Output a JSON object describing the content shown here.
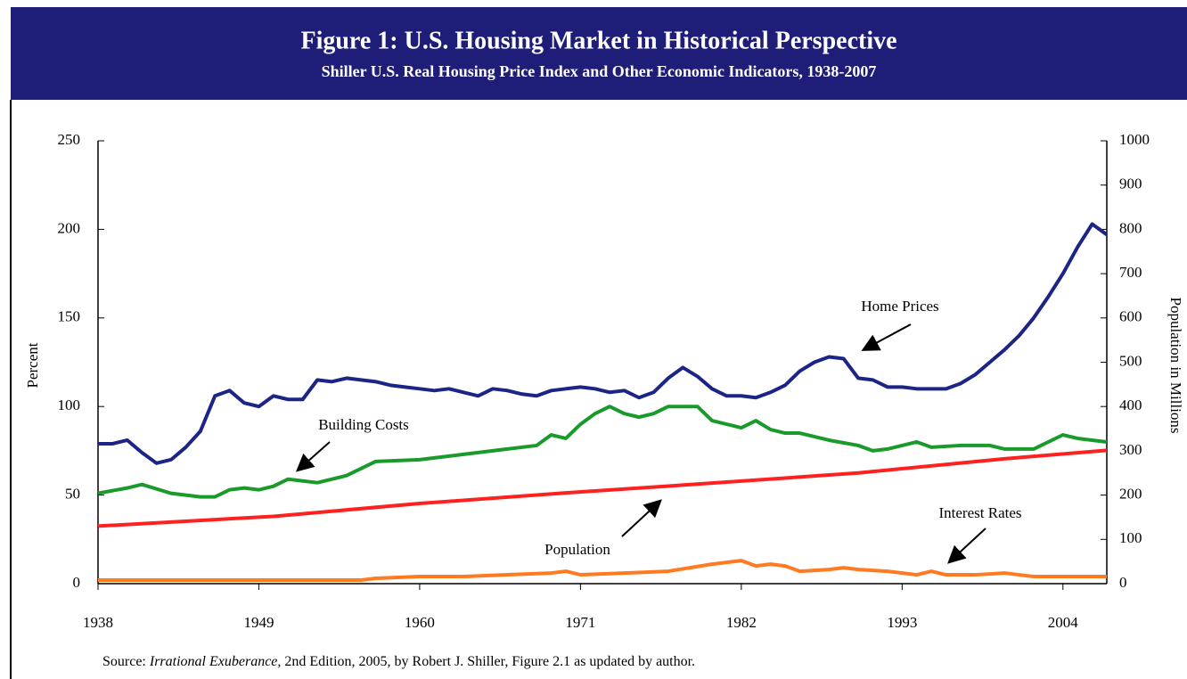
{
  "chart_data": {
    "type": "line",
    "title": "Figure 1: U.S. Housing Market in Historical Perspective",
    "subtitle": "Shiller U.S. Real Housing Price Index and Other Economic Indicators, 1938-2007",
    "y_label": "Percent",
    "y2_label": "Population in Millions",
    "source": {
      "prefix": "Source:",
      "italic": "Irrational Exuberance,",
      "suffix": "2nd Edition, 2005, by Robert J. Shiller, Figure 2.1 as updated by author."
    },
    "annotations": [
      "Home Prices",
      "Building Costs",
      "Population",
      "Interest Rates"
    ],
    "xlim": [
      1938,
      2007
    ],
    "xticks": [
      1938,
      1949,
      1960,
      1971,
      1982,
      1993,
      2004
    ],
    "ylim": [
      0,
      250
    ],
    "yticks": [
      0,
      50,
      100,
      150,
      200,
      250
    ],
    "y2lim": [
      0,
      1000
    ],
    "y2ticks": [
      0,
      100,
      200,
      300,
      400,
      500,
      600,
      700,
      800,
      900,
      1000
    ],
    "series": [
      {
        "name": "Home Prices",
        "color": "#1c2486",
        "x": [
          1938,
          1939,
          1940,
          1941,
          1942,
          1943,
          1944,
          1945,
          1946,
          1947,
          1948,
          1949,
          1950,
          1951,
          1952,
          1953,
          1954,
          1955,
          1956,
          1957,
          1958,
          1959,
          1960,
          1961,
          1962,
          1963,
          1964,
          1965,
          1966,
          1967,
          1968,
          1969,
          1970,
          1971,
          1972,
          1973,
          1974,
          1975,
          1976,
          1977,
          1978,
          1979,
          1980,
          1981,
          1982,
          1983,
          1984,
          1985,
          1986,
          1987,
          1988,
          1989,
          1990,
          1991,
          1992,
          1993,
          1994,
          1995,
          1996,
          1997,
          1998,
          1999,
          2000,
          2001,
          2002,
          2003,
          2004,
          2005,
          2006,
          2007
        ],
        "values": [
          79,
          79,
          81,
          74,
          68,
          70,
          77,
          86,
          106,
          109,
          102,
          100,
          106,
          104,
          104,
          115,
          114,
          116,
          115,
          114,
          112,
          111,
          110,
          109,
          110,
          108,
          106,
          110,
          109,
          107,
          106,
          109,
          110,
          111,
          110,
          108,
          109,
          105,
          108,
          116,
          122,
          117,
          110,
          106,
          106,
          105,
          108,
          112,
          120,
          125,
          128,
          127,
          116,
          115,
          111,
          111,
          110,
          110,
          110,
          113,
          118,
          125,
          132,
          140,
          150,
          162,
          175,
          190,
          203,
          197
        ]
      },
      {
        "name": "Building Costs",
        "color": "#1a9a2a",
        "x": [
          1938,
          1940,
          1941,
          1943,
          1945,
          1946,
          1947,
          1948,
          1949,
          1950,
          1951,
          1953,
          1955,
          1957,
          1960,
          1962,
          1964,
          1966,
          1968,
          1969,
          1970,
          1971,
          1972,
          1973,
          1974,
          1975,
          1976,
          1977,
          1979,
          1980,
          1982,
          1983,
          1984,
          1985,
          1986,
          1988,
          1990,
          1991,
          1992,
          1993,
          1994,
          1995,
          1997,
          1999,
          2000,
          2002,
          2004,
          2005,
          2007
        ],
        "values": [
          51,
          54,
          56,
          51,
          49,
          49,
          53,
          54,
          53,
          55,
          59,
          57,
          61,
          69,
          70,
          72,
          74,
          76,
          78,
          84,
          82,
          90,
          96,
          100,
          96,
          94,
          96,
          100,
          100,
          92,
          88,
          92,
          87,
          85,
          85,
          81,
          78,
          75,
          76,
          78,
          80,
          77,
          78,
          78,
          76,
          76,
          84,
          82,
          80
        ]
      },
      {
        "name": "Population",
        "color": "#ff2020",
        "axis": "y2",
        "x": [
          1938,
          1950,
          1960,
          1970,
          1980,
          1990,
          2000,
          2007
        ],
        "values": [
          130,
          152,
          181,
          205,
          227,
          250,
          282,
          301
        ]
      },
      {
        "name": "Interest Rates",
        "color": "#ff7a20",
        "x": [
          1938,
          1956,
          1957,
          1960,
          1963,
          1966,
          1969,
          1970,
          1971,
          1974,
          1977,
          1980,
          1982,
          1983,
          1984,
          1985,
          1986,
          1988,
          1989,
          1990,
          1992,
          1994,
          1995,
          1996,
          1998,
          2000,
          2002,
          2004,
          2007
        ],
        "values": [
          2,
          2,
          3,
          4,
          4,
          5,
          6,
          7,
          5,
          6,
          7,
          11,
          13,
          10,
          11,
          10,
          7,
          8,
          9,
          8,
          7,
          5,
          7,
          5,
          5,
          6,
          4,
          4,
          4
        ]
      }
    ]
  }
}
